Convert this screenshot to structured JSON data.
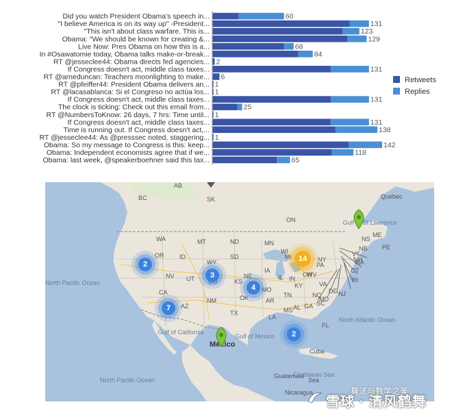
{
  "chart_data": {
    "type": "bar",
    "orientation": "horizontal",
    "stacked": true,
    "categories": [
      "Did you watch President Obama's speech in...",
      "\"I believe America is on its way up\" -President...",
      "\"This isn't about class warfare. This is...",
      "Obama: \"We should be known for creating &...",
      "Live Now: Pres Obama on how this is a...",
      "In #Osawatomie today, Obama talks make-or-break...",
      "RT @jesseclee44: Obama directs fed agencies...",
      "If Congress doesn't act, middle class taxes...",
      "RT @arneduncan: Teachers moonlighting to make...",
      "RT @pfeiffer44: President Obama delivers an...",
      "RT @lacasablanca: Si el Congreso no actúa los...",
      "If Congress doesn't act, middle class taxes...",
      "The clock is ticking: Check out this email from...",
      "RT @NumbersToKnow: 26 days, 7 hrs: Time until...",
      "If Congress doesn't act, middle class taxes...",
      "Time is running out. If Congress doesn't act,...",
      "RT @jesseclee44: As @presssec noted, staggering...",
      "Obama: So my message to Congress is this: keep...",
      "Obama: Independent economists agree that if we...",
      "Obama: last week, @speakerboehner said this tax..."
    ],
    "series": [
      {
        "name": "Retweets",
        "values": [
          22,
          115,
          109,
          113,
          60,
          72,
          2,
          99,
          6,
          1,
          1,
          99,
          21,
          1,
          99,
          103,
          1,
          114,
          100,
          54
        ]
      },
      {
        "name": "Replies",
        "values": [
          38,
          16,
          14,
          16,
          8,
          12,
          0,
          32,
          0,
          0,
          0,
          32,
          4,
          0,
          32,
          35,
          0,
          28,
          18,
          11
        ]
      }
    ],
    "totals": [
      "60",
      "131",
      "123",
      "129",
      "68",
      "84",
      "2",
      "131",
      "6",
      "1",
      "1",
      "131",
      "25",
      "1",
      "131",
      "138",
      "1",
      "142",
      "118",
      "65"
    ],
    "xlim": [
      0,
      142
    ],
    "legend_position": "right",
    "colors": {
      "Retweets": "#3a55a6",
      "Replies": "#4a8fd6"
    }
  },
  "map": {
    "clusters": [
      {
        "count": "2",
        "color": "#3b82e0"
      },
      {
        "count": "3",
        "color": "#3b82e0"
      },
      {
        "count": "4",
        "color": "#3b82e0"
      },
      {
        "count": "7",
        "color": "#3b82e0"
      },
      {
        "count": "2",
        "color": "#3b82e0"
      },
      {
        "count": "14",
        "color": "#f2b01e"
      }
    ],
    "labels": {
      "countries": [
        "AB",
        "SK",
        "BC",
        "Quebec",
        "WA",
        "MT",
        "ND",
        "MN",
        "ON",
        "OR",
        "ID",
        "WY",
        "SD",
        "WI",
        "MI",
        "NY",
        "NV",
        "UT",
        "CO",
        "NE",
        "IA",
        "IL",
        "IN",
        "OH",
        "PA",
        "CA",
        "KS",
        "MO",
        "KY",
        "WV",
        "VA",
        "AZ",
        "NM",
        "OK",
        "AR",
        "TN",
        "NC",
        "TX",
        "LA",
        "MS",
        "AL",
        "GA",
        "SC",
        "FL",
        "VT",
        "ME",
        "NB",
        "NH",
        "MA",
        "RI",
        "CT",
        "NJ",
        "DE",
        "MD",
        "NS",
        "PE",
        "Cuba",
        "Guatemala",
        "Sea",
        "Nicaragua"
      ],
      "mexico": "México",
      "gulfs": [
        "Gulf of St Lawrence",
        "Gulf of California",
        "Gulf of Mexico",
        "Caribbean Sea"
      ],
      "oceans": [
        "North Pacific Ocean",
        "North Atlantic Ocean",
        "North Pacific Ocean"
      ]
    }
  },
  "watermark": {
    "top": "算法与数学之美",
    "main": "雪球 · 清风鹤舞"
  }
}
